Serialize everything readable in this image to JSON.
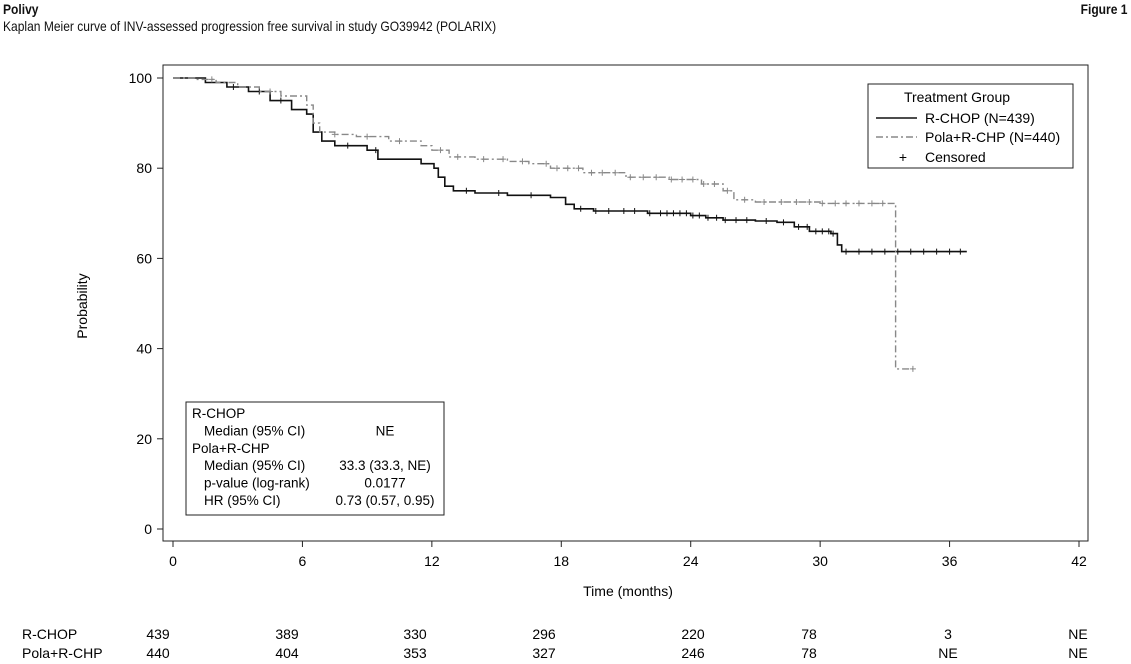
{
  "header": {
    "brand": "Polivy",
    "subtitle": "Kaplan Meier curve of INV-assessed progression free survival in study GO39942 (POLARIX)",
    "figure_label": "Figure 1"
  },
  "chart_data": {
    "type": "line",
    "title": "",
    "xlabel": "Time (months)",
    "ylabel": "Probability",
    "xlim": [
      0,
      42
    ],
    "ylim": [
      0,
      100
    ],
    "xticks": [
      0,
      6,
      12,
      18,
      24,
      30,
      36,
      42
    ],
    "yticks": [
      0,
      20,
      40,
      60,
      80,
      100
    ],
    "grid": false,
    "legend": {
      "title": "Treatment Group",
      "placement": "top-right",
      "censored_label": "Censored",
      "censored_symbol": "+"
    },
    "series": [
      {
        "name": "R-CHOP (N=439)",
        "color": "#111111",
        "style": "solid",
        "step_points": [
          [
            0,
            100
          ],
          [
            0.5,
            100
          ],
          [
            1.5,
            99
          ],
          [
            2.5,
            98
          ],
          [
            3.5,
            97
          ],
          [
            4.5,
            95
          ],
          [
            5.5,
            93
          ],
          [
            6.2,
            92
          ],
          [
            6.5,
            88
          ],
          [
            6.9,
            86
          ],
          [
            7.5,
            85
          ],
          [
            9,
            84
          ],
          [
            9.5,
            82
          ],
          [
            10.5,
            82
          ],
          [
            11.5,
            81
          ],
          [
            12.1,
            80
          ],
          [
            12.3,
            78
          ],
          [
            12.6,
            76
          ],
          [
            13,
            75
          ],
          [
            14,
            74.5
          ],
          [
            15.5,
            74
          ],
          [
            16.5,
            74
          ],
          [
            17.5,
            73.5
          ],
          [
            18.2,
            72
          ],
          [
            18.6,
            71
          ],
          [
            19.5,
            70.5
          ],
          [
            22,
            70
          ],
          [
            24,
            69.5
          ],
          [
            24.7,
            69
          ],
          [
            25.5,
            68.5
          ],
          [
            27,
            68.3
          ],
          [
            28,
            68
          ],
          [
            28.8,
            67
          ],
          [
            29.5,
            66
          ],
          [
            30.5,
            65.5
          ],
          [
            30.8,
            63
          ],
          [
            31,
            61.5
          ],
          [
            36.8,
            61.5
          ]
        ],
        "censor_x": [
          2.8,
          4.0,
          5.0,
          8.1,
          9.4,
          13.6,
          15.1,
          16.6,
          18.9,
          19.6,
          20.2,
          20.9,
          21.4,
          22.1,
          22.6,
          22.9,
          23.2,
          23.5,
          23.8,
          24.1,
          24.4,
          24.8,
          25.2,
          25.6,
          26.1,
          26.6,
          27.5,
          28.3,
          29.0,
          29.4,
          29.8,
          30.1,
          30.4,
          30.6,
          31.2,
          31.8,
          32.4,
          33.0,
          33.6,
          34.2,
          34.8,
          35.4,
          36.0,
          36.5
        ]
      },
      {
        "name": "Pola+R-CHP (N=440)",
        "color": "#888888",
        "style": "dashdot",
        "step_points": [
          [
            0,
            100
          ],
          [
            1,
            99.7
          ],
          [
            2,
            99
          ],
          [
            3,
            98
          ],
          [
            4,
            97
          ],
          [
            5,
            96
          ],
          [
            6.2,
            94
          ],
          [
            6.5,
            90
          ],
          [
            6.8,
            88
          ],
          [
            7.5,
            87.5
          ],
          [
            8.5,
            87
          ],
          [
            10,
            86
          ],
          [
            11.5,
            85
          ],
          [
            12,
            84
          ],
          [
            12.8,
            82.5
          ],
          [
            14,
            82
          ],
          [
            15.5,
            81.5
          ],
          [
            16.5,
            81
          ],
          [
            17.5,
            80
          ],
          [
            19,
            79
          ],
          [
            21,
            78
          ],
          [
            23,
            77.5
          ],
          [
            24.5,
            76.5
          ],
          [
            25.5,
            75
          ],
          [
            26,
            73
          ],
          [
            27,
            72.5
          ],
          [
            30,
            72.2
          ],
          [
            33.5,
            72.2
          ],
          [
            33.5,
            35.5
          ],
          [
            34.3,
            35.5
          ]
        ],
        "censor_x": [
          1.8,
          4.5,
          7.5,
          9.0,
          10.5,
          12.4,
          13.2,
          14.4,
          15.3,
          16.2,
          17.3,
          17.8,
          18.3,
          18.8,
          19.4,
          19.9,
          20.5,
          21.2,
          21.8,
          22.4,
          23.1,
          23.6,
          24.1,
          24.6,
          25.1,
          25.7,
          26.5,
          27.4,
          28.2,
          28.9,
          29.5,
          30.1,
          30.7,
          31.2,
          31.8,
          32.4,
          32.9,
          34.3
        ]
      }
    ],
    "stats_box": {
      "rows": [
        {
          "label": "R-CHOP",
          "value": "",
          "indent": false
        },
        {
          "label": "Median (95% CI)",
          "value": "NE",
          "indent": true
        },
        {
          "label": "Pola+R-CHP",
          "value": "",
          "indent": false
        },
        {
          "label": "Median (95% CI)",
          "value": "33.3 (33.3, NE)",
          "indent": true
        },
        {
          "label": "p-value (log-rank)",
          "value": "0.0177",
          "indent": true
        },
        {
          "label": "HR (95% CI)",
          "value": "0.73 (0.57, 0.95)",
          "indent": true
        }
      ]
    },
    "at_risk": [
      {
        "label": "R-CHOP",
        "values": [
          "439",
          "389",
          "330",
          "296",
          "220",
          "78",
          "3",
          "NE"
        ]
      },
      {
        "label": "Pola+R-CHP",
        "values": [
          "440",
          "404",
          "353",
          "327",
          "246",
          "78",
          "NE",
          "NE"
        ]
      }
    ]
  }
}
